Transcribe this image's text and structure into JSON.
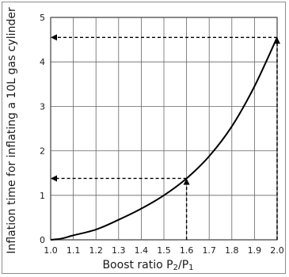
{
  "chart_data": {
    "type": "line",
    "xlabel_main": "Boost ratio ",
    "xlabel_p2": "P",
    "xlabel_p2_sub": "2",
    "xlabel_slash": "/P",
    "xlabel_p1_sub": "1",
    "ylabel": "Inflation time for inflating a 10L gas cylinder",
    "xlim": [
      1.0,
      2.0
    ],
    "ylim": [
      0,
      5
    ],
    "x_ticks": [
      "1.0",
      "1.1",
      "1.2",
      "1.3",
      "1.4",
      "1.5",
      "1.6",
      "1.7",
      "1.8",
      "1.9",
      "2.0"
    ],
    "y_ticks": [
      "0",
      "1",
      "2",
      "3",
      "4",
      "5"
    ],
    "grid": true,
    "series": [
      {
        "x": [
          1.0,
          1.05,
          1.1,
          1.2,
          1.3,
          1.4,
          1.5,
          1.6,
          1.7,
          1.8,
          1.9,
          2.0
        ],
        "y": [
          0.0,
          0.03,
          0.1,
          0.23,
          0.45,
          0.7,
          1.0,
          1.38,
          1.88,
          2.55,
          3.45,
          4.55
        ]
      }
    ],
    "annotations": [
      {
        "x": 1.6,
        "y": 1.38
      },
      {
        "x": 2.0,
        "y": 4.55
      }
    ],
    "colors": {
      "line": "#000000",
      "grid": "#666666",
      "border": "#8c8c8c"
    }
  }
}
